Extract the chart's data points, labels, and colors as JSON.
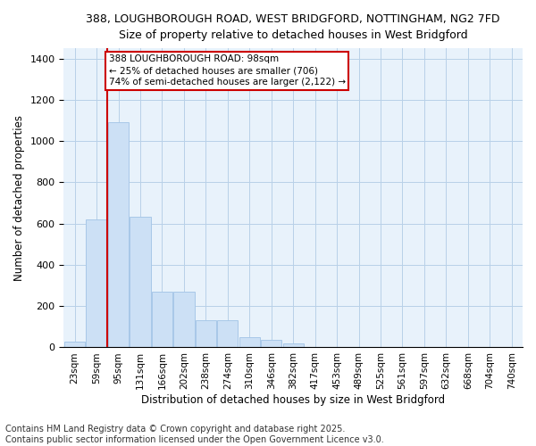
{
  "title_line1": "388, LOUGHBOROUGH ROAD, WEST BRIDGFORD, NOTTINGHAM, NG2 7FD",
  "title_line2": "Size of property relative to detached houses in West Bridgford",
  "xlabel": "Distribution of detached houses by size in West Bridgford",
  "ylabel": "Number of detached properties",
  "bar_color": "#cce0f5",
  "bar_edge_color": "#a8c8e8",
  "grid_color": "#b8d0e8",
  "background_color": "#e8f2fb",
  "categories": [
    "23sqm",
    "59sqm",
    "95sqm",
    "131sqm",
    "166sqm",
    "202sqm",
    "238sqm",
    "274sqm",
    "310sqm",
    "346sqm",
    "382sqm",
    "417sqm",
    "453sqm",
    "489sqm",
    "525sqm",
    "561sqm",
    "597sqm",
    "632sqm",
    "668sqm",
    "704sqm",
    "740sqm"
  ],
  "values": [
    28,
    620,
    1090,
    635,
    270,
    270,
    130,
    130,
    50,
    38,
    18,
    0,
    0,
    0,
    0,
    0,
    0,
    0,
    0,
    0,
    0
  ],
  "ylim": [
    0,
    1450
  ],
  "yticks": [
    0,
    200,
    400,
    600,
    800,
    1000,
    1200,
    1400
  ],
  "annotation_line1": "388 LOUGHBOROUGH ROAD: 98sqm",
  "annotation_line2": "← 25% of detached houses are smaller (706)",
  "annotation_line3": "74% of semi-detached houses are larger (2,122) →",
  "vline_color": "#cc0000",
  "annotation_box_color": "#cc0000",
  "footer_line1": "Contains HM Land Registry data © Crown copyright and database right 2025.",
  "footer_line2": "Contains public sector information licensed under the Open Government Licence v3.0."
}
